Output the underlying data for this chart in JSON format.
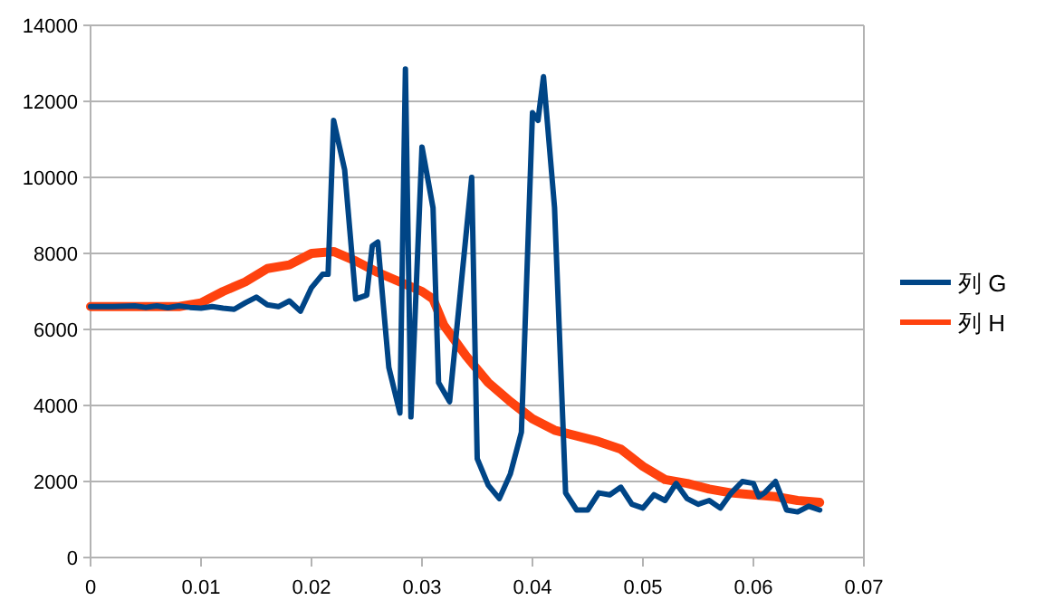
{
  "chart_data": {
    "type": "line",
    "xlim": [
      0,
      0.07
    ],
    "xticks": [
      0,
      0.01,
      0.02,
      0.03,
      0.04,
      0.05,
      0.06,
      0.07
    ],
    "ylim": [
      0,
      14000
    ],
    "yticks": [
      0,
      2000,
      4000,
      6000,
      8000,
      10000,
      12000,
      14000
    ],
    "grid": "y",
    "legend": "right",
    "marker": "none",
    "line_style": "solid",
    "series": [
      {
        "name": "列 G",
        "color": "#004586",
        "x": [
          0,
          0.002,
          0.004,
          0.005,
          0.006,
          0.007,
          0.008,
          0.009,
          0.01,
          0.011,
          0.012,
          0.013,
          0.014,
          0.015,
          0.016,
          0.017,
          0.018,
          0.019,
          0.02,
          0.021,
          0.0215,
          0.022,
          0.023,
          0.024,
          0.025,
          0.0255,
          0.026,
          0.027,
          0.028,
          0.0285,
          0.029,
          0.03,
          0.031,
          0.0315,
          0.0325,
          0.0345,
          0.035,
          0.036,
          0.037,
          0.038,
          0.039,
          0.04,
          0.0405,
          0.041,
          0.042,
          0.043,
          0.044,
          0.045,
          0.046,
          0.047,
          0.048,
          0.049,
          0.05,
          0.051,
          0.052,
          0.053,
          0.054,
          0.055,
          0.056,
          0.057,
          0.058,
          0.059,
          0.06,
          0.0605,
          0.061,
          0.062,
          0.063,
          0.064,
          0.065,
          0.066
        ],
        "values": [
          6600,
          6600,
          6620,
          6580,
          6620,
          6570,
          6620,
          6580,
          6560,
          6600,
          6560,
          6530,
          6700,
          6850,
          6650,
          6600,
          6750,
          6480,
          7100,
          7450,
          7450,
          11500,
          10200,
          6800,
          6900,
          8200,
          8300,
          5000,
          3800,
          12850,
          3700,
          10800,
          9200,
          4600,
          4100,
          10000,
          2600,
          1900,
          1550,
          2200,
          3300,
          11700,
          11500,
          12650,
          9200,
          1700,
          1250,
          1250,
          1700,
          1650,
          1850,
          1400,
          1300,
          1650,
          1500,
          1950,
          1550,
          1400,
          1500,
          1300,
          1700,
          2000,
          1950,
          1600,
          1700,
          2000,
          1250,
          1200,
          1350,
          1250
        ]
      },
      {
        "name": "列 H",
        "color": "#ff420e",
        "x": [
          0,
          0.008,
          0.01,
          0.012,
          0.014,
          0.016,
          0.018,
          0.02,
          0.022,
          0.024,
          0.026,
          0.028,
          0.03,
          0.031,
          0.032,
          0.034,
          0.036,
          0.038,
          0.04,
          0.042,
          0.044,
          0.046,
          0.048,
          0.05,
          0.052,
          0.054,
          0.056,
          0.058,
          0.06,
          0.062,
          0.064,
          0.066
        ],
        "values": [
          6600,
          6600,
          6700,
          7000,
          7250,
          7600,
          7700,
          8000,
          8050,
          7800,
          7500,
          7250,
          7000,
          6800,
          6100,
          5300,
          4600,
          4100,
          3650,
          3350,
          3200,
          3050,
          2850,
          2400,
          2050,
          1950,
          1800,
          1700,
          1650,
          1600,
          1500,
          1450
        ]
      }
    ]
  }
}
